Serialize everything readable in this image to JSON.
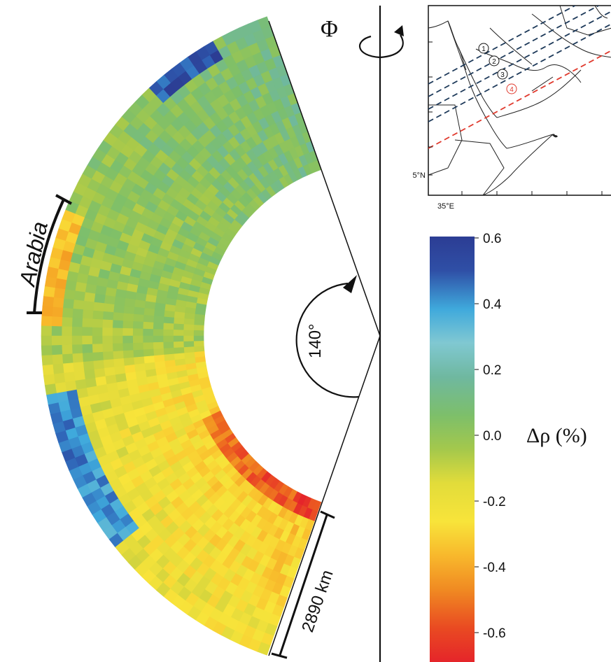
{
  "diagram": {
    "axis_symbol": "Φ",
    "region_label": "Arabia",
    "angle_label": "140°",
    "depth_label": "2890 km",
    "colorbar": {
      "label": "Δρ (%)",
      "ticks": [
        "0.6",
        "0.4",
        "0.2",
        "0.0",
        "-0.2",
        "-0.4",
        "-0.6"
      ],
      "range": [
        -0.6,
        0.6
      ],
      "colors_top_to_bottom": [
        "#2c3d94",
        "#2f62b6",
        "#3fa9dc",
        "#7dc6cf",
        "#6fb8a0",
        "#7dbf6a",
        "#a4c84c",
        "#d8d63c",
        "#f8e43a",
        "#f9c22e",
        "#f39a22",
        "#ec5f20",
        "#e5252a"
      ]
    },
    "map": {
      "lat_label": "5°N",
      "lon_label": "35°E",
      "profiles": [
        "1",
        "2",
        "3",
        "4"
      ],
      "profile_colors": [
        "#1e3a5a",
        "#1e3a5a",
        "#1e3a5a",
        "#e03a2e"
      ]
    }
  }
}
